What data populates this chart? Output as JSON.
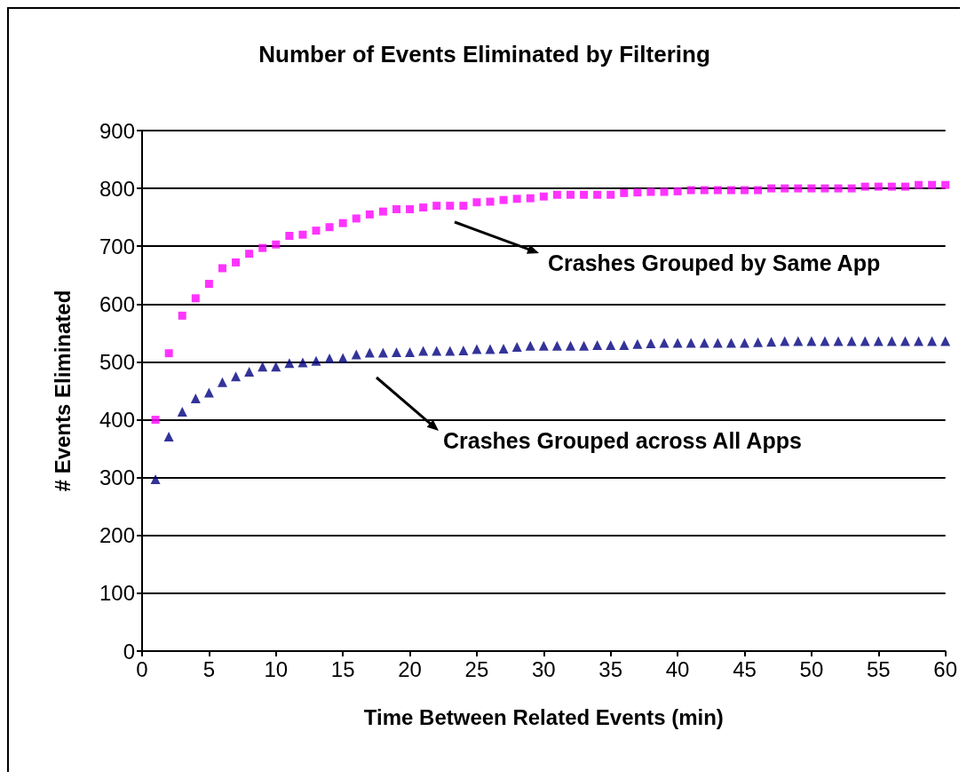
{
  "chart_data": {
    "type": "scatter",
    "title": "Number of Events Eliminated by Filtering",
    "xlabel": "Time Between Related Events (min)",
    "ylabel": "# Events Eliminated",
    "x": [
      1,
      2,
      3,
      4,
      5,
      6,
      7,
      8,
      9,
      10,
      11,
      12,
      13,
      14,
      15,
      16,
      17,
      18,
      19,
      20,
      21,
      22,
      23,
      24,
      25,
      26,
      27,
      28,
      29,
      30,
      31,
      32,
      33,
      34,
      35,
      36,
      37,
      38,
      39,
      40,
      41,
      42,
      43,
      44,
      45,
      46,
      47,
      48,
      49,
      50,
      51,
      52,
      53,
      54,
      55,
      56,
      57,
      58,
      59,
      60
    ],
    "series": [
      {
        "color": "#ff00ff",
        "marker": "square",
        "values": [
          400,
          515,
          580,
          610,
          635,
          662,
          672,
          687,
          697,
          703,
          718,
          720,
          727,
          733,
          740,
          748,
          755,
          760,
          764,
          764,
          767,
          770,
          770,
          770,
          776,
          777,
          780,
          782,
          783,
          786,
          789,
          789,
          789,
          789,
          789,
          792,
          793,
          794,
          794,
          795,
          797,
          797,
          797,
          797,
          797,
          797,
          800,
          800,
          800,
          800,
          800,
          800,
          800,
          803,
          803,
          803,
          803,
          806,
          806,
          806
        ]
      },
      {
        "color": "#000080",
        "marker": "triangle",
        "values": [
          297,
          371,
          414,
          437,
          447,
          465,
          475,
          483,
          492,
          492,
          498,
          499,
          502,
          506,
          507,
          513,
          516,
          516,
          517,
          517,
          519,
          519,
          519,
          520,
          522,
          522,
          523,
          526,
          528,
          528,
          528,
          528,
          528,
          529,
          529,
          529,
          531,
          532,
          533,
          533,
          533,
          533,
          533,
          533,
          533,
          534,
          535,
          536,
          536,
          536,
          536,
          536,
          536,
          536,
          536,
          536,
          536,
          536,
          536,
          536
        ]
      }
    ],
    "annotations": [
      "Crashes Grouped by Same App",
      "Crashes Grouped across All Apps"
    ],
    "xlim": [
      0,
      60
    ],
    "xticks": [
      0,
      5,
      10,
      15,
      20,
      25,
      30,
      35,
      40,
      45,
      50,
      55,
      60
    ],
    "ylim": [
      0,
      900
    ],
    "yticks": [
      0,
      100,
      200,
      300,
      400,
      500,
      600,
      700,
      800,
      900
    ],
    "grid": "y",
    "legend": false
  }
}
